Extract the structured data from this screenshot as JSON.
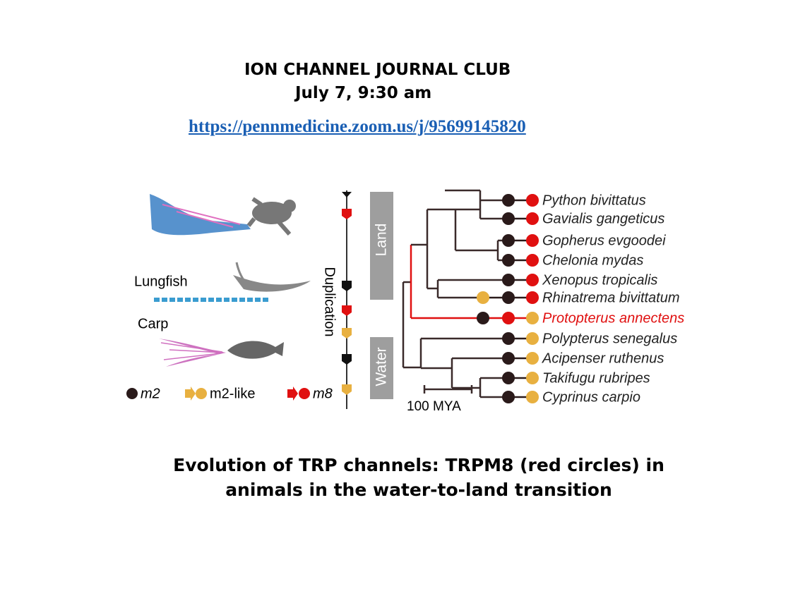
{
  "header": {
    "title": "ION CHANNEL JOURNAL CLUB",
    "date": "July 7, 9:30 am",
    "link": "https://pennmedicine.zoom.us/j/95699145820"
  },
  "figure": {
    "animals": [
      "Lungfish",
      "Carp"
    ],
    "legend": [
      "m2",
      "m2-like",
      "m8"
    ],
    "bands": [
      "Land",
      "Duplication",
      "Water"
    ],
    "scale": "100 MYA",
    "species": [
      "Python bivittatus",
      "Gavialis gangeticus",
      "Gopherus evgoodei",
      "Chelonia mydas",
      "Xenopus tropicalis",
      "Rhinatrema bivittatum",
      "Protopterus annectens",
      "Polypterus senegalus",
      "Acipenser ruthenus",
      "Takifugu rubripes",
      "Cyprinus carpio"
    ]
  },
  "caption": [
    "Evolution of TRP channels: TRPM8 (red circles) in",
    "animals in the water-to-land transition"
  ]
}
